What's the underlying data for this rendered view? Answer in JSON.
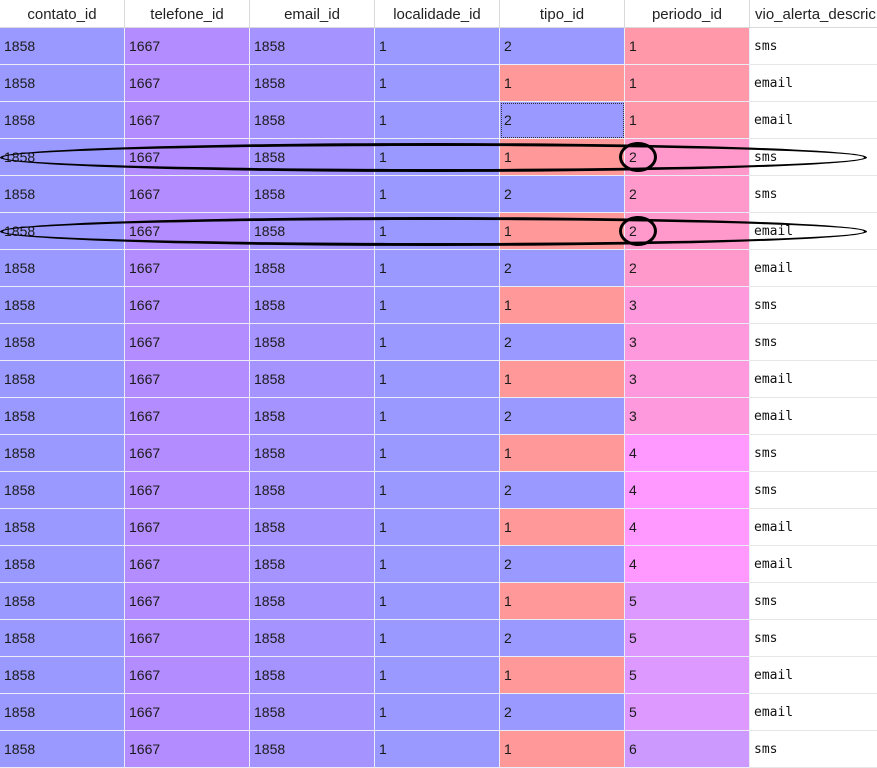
{
  "table": {
    "sort_indicator": "^",
    "columns": [
      "contato_id",
      "telefone_id",
      "email_id",
      "localidade_id",
      "tipo_id",
      "periodo_id",
      "vio_alerta_descric"
    ],
    "rows": [
      [
        "1858",
        "1667",
        "1858",
        "1",
        "2",
        "1",
        "sms"
      ],
      [
        "1858",
        "1667",
        "1858",
        "1",
        "1",
        "1",
        "email"
      ],
      [
        "1858",
        "1667",
        "1858",
        "1",
        "2",
        "1",
        "email"
      ],
      [
        "1858",
        "1667",
        "1858",
        "1",
        "1",
        "2",
        "sms"
      ],
      [
        "1858",
        "1667",
        "1858",
        "1",
        "2",
        "2",
        "sms"
      ],
      [
        "1858",
        "1667",
        "1858",
        "1",
        "1",
        "2",
        "email"
      ],
      [
        "1858",
        "1667",
        "1858",
        "1",
        "2",
        "2",
        "email"
      ],
      [
        "1858",
        "1667",
        "1858",
        "1",
        "1",
        "3",
        "sms"
      ],
      [
        "1858",
        "1667",
        "1858",
        "1",
        "2",
        "3",
        "sms"
      ],
      [
        "1858",
        "1667",
        "1858",
        "1",
        "1",
        "3",
        "email"
      ],
      [
        "1858",
        "1667",
        "1858",
        "1",
        "2",
        "3",
        "email"
      ],
      [
        "1858",
        "1667",
        "1858",
        "1",
        "1",
        "4",
        "sms"
      ],
      [
        "1858",
        "1667",
        "1858",
        "1",
        "2",
        "4",
        "sms"
      ],
      [
        "1858",
        "1667",
        "1858",
        "1",
        "1",
        "4",
        "email"
      ],
      [
        "1858",
        "1667",
        "1858",
        "1",
        "2",
        "4",
        "email"
      ],
      [
        "1858",
        "1667",
        "1858",
        "1",
        "1",
        "5",
        "sms"
      ],
      [
        "1858",
        "1667",
        "1858",
        "1",
        "2",
        "5",
        "sms"
      ],
      [
        "1858",
        "1667",
        "1858",
        "1",
        "1",
        "5",
        "email"
      ],
      [
        "1858",
        "1667",
        "1858",
        "1",
        "2",
        "5",
        "email"
      ],
      [
        "1858",
        "1667",
        "1858",
        "1",
        "1",
        "6",
        "sms"
      ]
    ],
    "selected_cell": {
      "row": 2,
      "col": 4
    },
    "highlighted_rows": [
      3,
      5
    ],
    "circled_cells": [
      {
        "row": 3,
        "col": 5
      },
      {
        "row": 5,
        "col": 5
      }
    ]
  },
  "colors": {
    "contato_id": "#9999ff",
    "telefone_id": "#b38dff",
    "email_id": "#a593ff",
    "localidade_id": "#9999ff",
    "tipo_1": "#ff9999",
    "tipo_2": "#9999ff",
    "periodo_1": "#ff99aa",
    "periodo_2": "#ff99cc",
    "periodo_3": "#ff99dd",
    "periodo_4": "#ff99ff",
    "periodo_5": "#dd99ff",
    "periodo_6": "#cc99ff",
    "last_col": "#ffffff",
    "annotation": "#000000"
  }
}
